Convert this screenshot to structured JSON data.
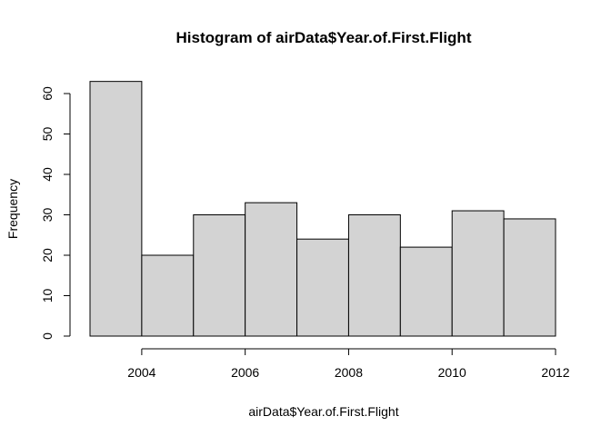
{
  "chart_data": {
    "type": "bar",
    "title": "Histogram of airData$Year.of.First.Flight",
    "xlabel": "airData$Year.of.First.Flight",
    "ylabel": "Frequency",
    "bins": [
      {
        "start": 2003,
        "end": 2004,
        "count": 63
      },
      {
        "start": 2004,
        "end": 2005,
        "count": 20
      },
      {
        "start": 2005,
        "end": 2006,
        "count": 30
      },
      {
        "start": 2006,
        "end": 2007,
        "count": 33
      },
      {
        "start": 2007,
        "end": 2008,
        "count": 24
      },
      {
        "start": 2008,
        "end": 2009,
        "count": 30
      },
      {
        "start": 2009,
        "end": 2010,
        "count": 22
      },
      {
        "start": 2010,
        "end": 2011,
        "count": 31
      },
      {
        "start": 2011,
        "end": 2012,
        "count": 29
      }
    ],
    "xticks": [
      2004,
      2006,
      2008,
      2010,
      2012
    ],
    "yticks": [
      0,
      10,
      20,
      30,
      40,
      50,
      60
    ],
    "xlim": [
      2003,
      2012
    ],
    "ylim": [
      0,
      60
    ],
    "bar_color": "#d3d3d3",
    "grid": false
  }
}
